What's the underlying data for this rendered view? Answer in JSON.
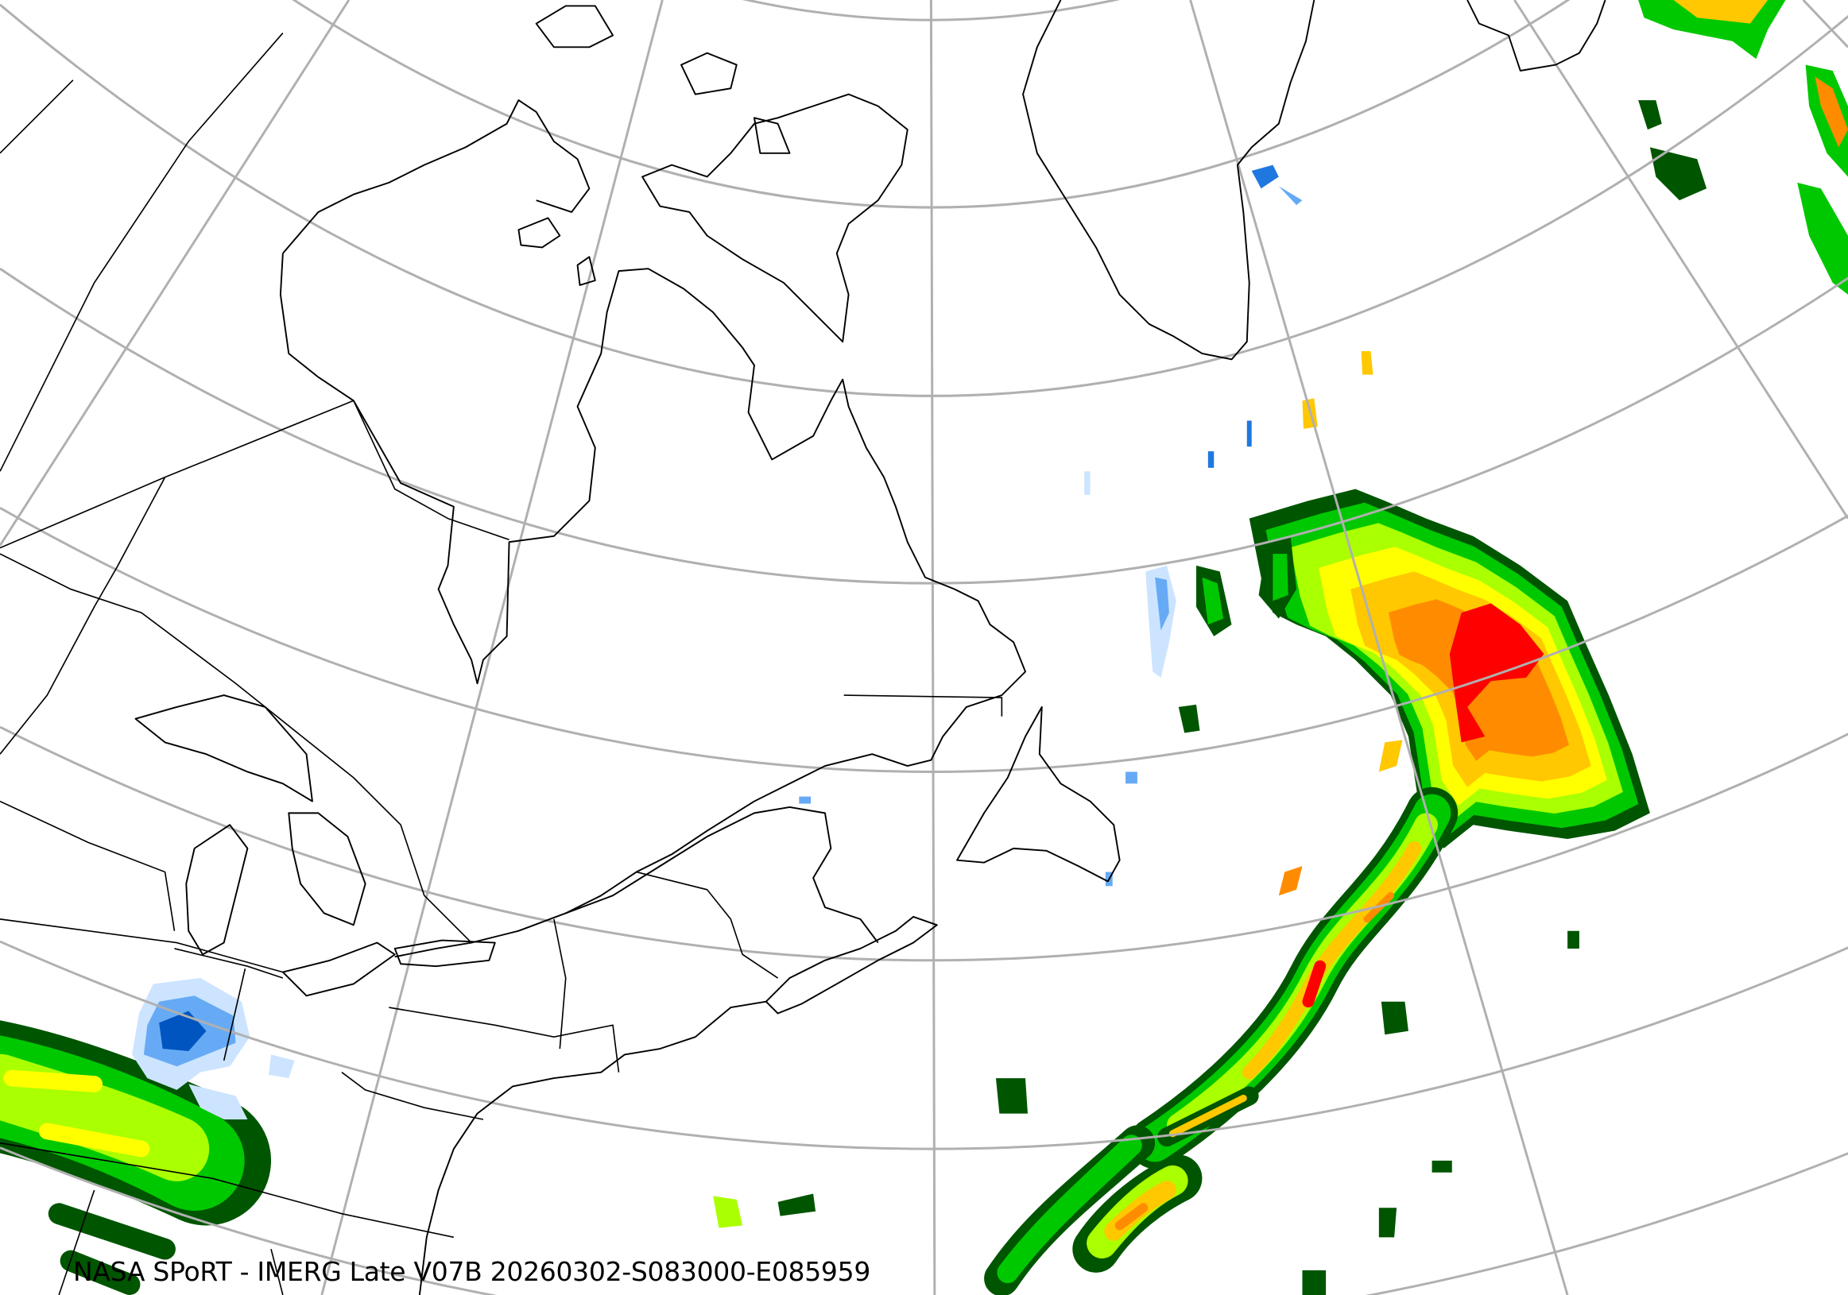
{
  "caption": "NASA SPoRT - IMERG Late V07B 20260302-S083000-E085959",
  "colors": {
    "grid": "#b0b0b0",
    "coastline": "#000000",
    "background": "#ffffff",
    "precip_snow": [
      "#cce4ff",
      "#66aaf5",
      "#1f78e0",
      "#0055c0"
    ],
    "precip_rain": [
      "#005500",
      "#00c800",
      "#aaff00",
      "#ffff00",
      "#ffc800",
      "#ff8c00",
      "#ff0000"
    ]
  }
}
